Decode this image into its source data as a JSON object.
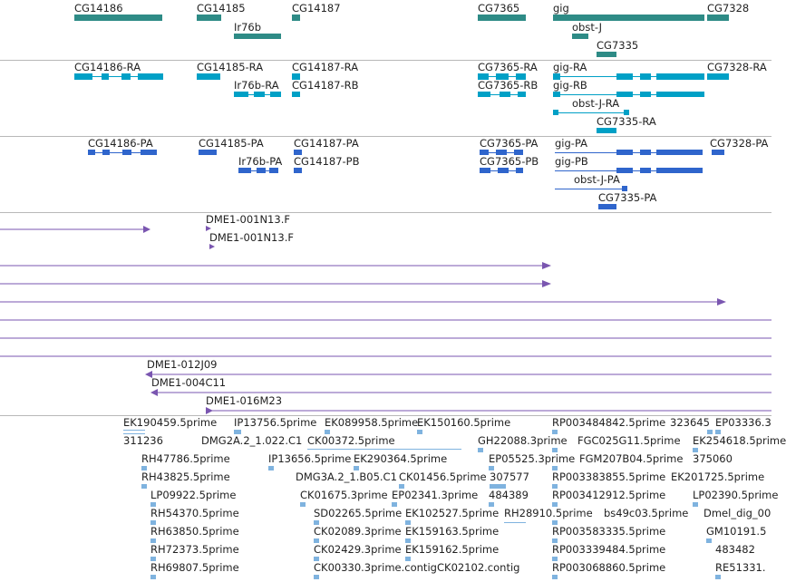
{
  "colors": {
    "gene": "#2e8b86",
    "transcript": "#00a0c6",
    "protein": "#2f65cc",
    "clone": "#7a56b0",
    "est": "#7fb3df",
    "divider": "#b8b8b8"
  },
  "tracks": {
    "genes": {
      "labels": [
        "CG14186",
        "CG14185",
        "CG14187",
        "CG7365",
        "gig",
        "CG7328",
        "Ir76b",
        "obst-J",
        "CG7335"
      ]
    },
    "transcripts": {
      "labels": [
        "CG14186-RA",
        "CG14185-RA",
        "CG14187-RA",
        "CG7365-RA",
        "gig-RA",
        "CG7328-RA",
        "Ir76b-RA",
        "CG14187-RB",
        "CG7365-RB",
        "gig-RB",
        "obst-J-RA",
        "CG7335-RA"
      ]
    },
    "proteins": {
      "labels": [
        "CG14186-PA",
        "CG14185-PA",
        "CG14187-PA",
        "CG7365-PA",
        "gig-PA",
        "CG7328-PA",
        "Ir76b-PA",
        "CG14187-PB",
        "CG7365-PB",
        "gig-PB",
        "obst-J-PA",
        "CG7335-PA"
      ]
    },
    "clones": {
      "labels": [
        "DME1-001N13.F",
        "DME1-001N13.F",
        "DME1-012J09",
        "DME1-004C11",
        "DME1-016M23"
      ]
    },
    "ests": {
      "labels": [
        "EK190459.5prime",
        "IP13756.5prime",
        "EK089958.5prime",
        "EK150160.5prime",
        "RP003484842.5prime",
        "323645",
        "EP03336.3",
        "311236",
        "DMG2A.2_1.022.C1",
        "CK00372.5prime",
        "GH22088.3prime",
        "FGC025G11.5prime",
        "EK254618.5prime",
        "RH47786.5prime",
        "IP13656.5prime",
        "EK290364.5prime",
        "EP05525.3prime",
        "FGM207B04.5prime",
        "375060",
        "RH43825.5prime",
        "DMG3A.2_1.B05.C1",
        "CK01456.5prime",
        "307577",
        "RP003383855.5prime",
        "EK201725.5prime",
        "LP09922.5prime",
        "CK01675.3prime",
        "EP02341.3prime",
        "484389",
        "RP003412912.5prime",
        "LP02390.5prime",
        "RH54370.5prime",
        "SD02265.5prime",
        "EK102527.5prime",
        "RH28910.5prime",
        "bs49c03.5prime",
        "Dmel_dig_00",
        "RH63850.5prime",
        "CK02089.3prime",
        "EK159163.5prime",
        "RP003583335.5prime",
        "GM10191.5",
        "RH72373.5prime",
        "CK02429.3prime",
        "EK159162.5prime",
        "RP003339484.5prime",
        "483482",
        "RH69807.5prime",
        "CK00330.3prime.contig",
        "CK02102.contig",
        "RP003068860.5prime",
        "RE51331."
      ]
    }
  }
}
